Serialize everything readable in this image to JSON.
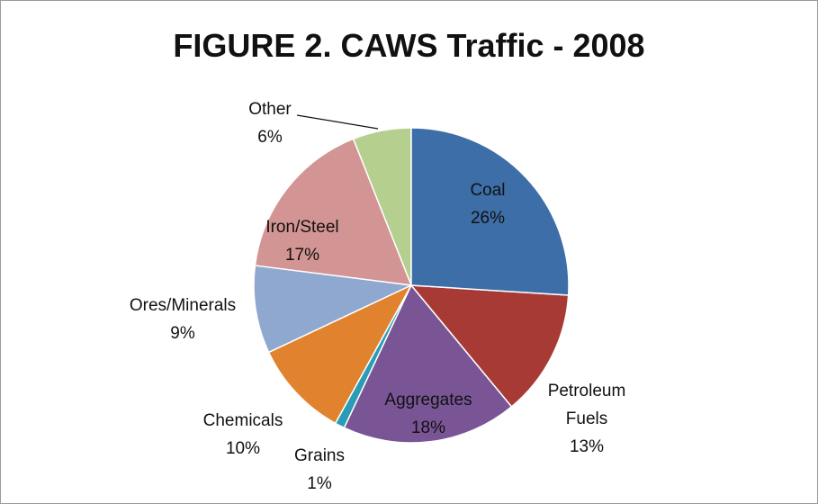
{
  "chart_data": {
    "type": "pie",
    "title": "FIGURE 2.  CAWS Traffic - 2008",
    "categories": [
      "Coal",
      "Petroleum Fuels",
      "Aggregates",
      "Grains",
      "Chemicals",
      "Ores/Minerals",
      "Iron/Steel",
      "Other"
    ],
    "values": [
      26,
      13,
      18,
      1,
      10,
      9,
      17,
      6
    ],
    "value_labels": [
      "26%",
      "13%",
      "18%",
      "1%",
      "10%",
      "9%",
      "17%",
      "6%"
    ],
    "colors": [
      "#3d6ea8",
      "#a83a36",
      "#7a5596",
      "#2b9cb8",
      "#e0822e",
      "#8fa8d0",
      "#d29593",
      "#b5cf8e"
    ]
  }
}
